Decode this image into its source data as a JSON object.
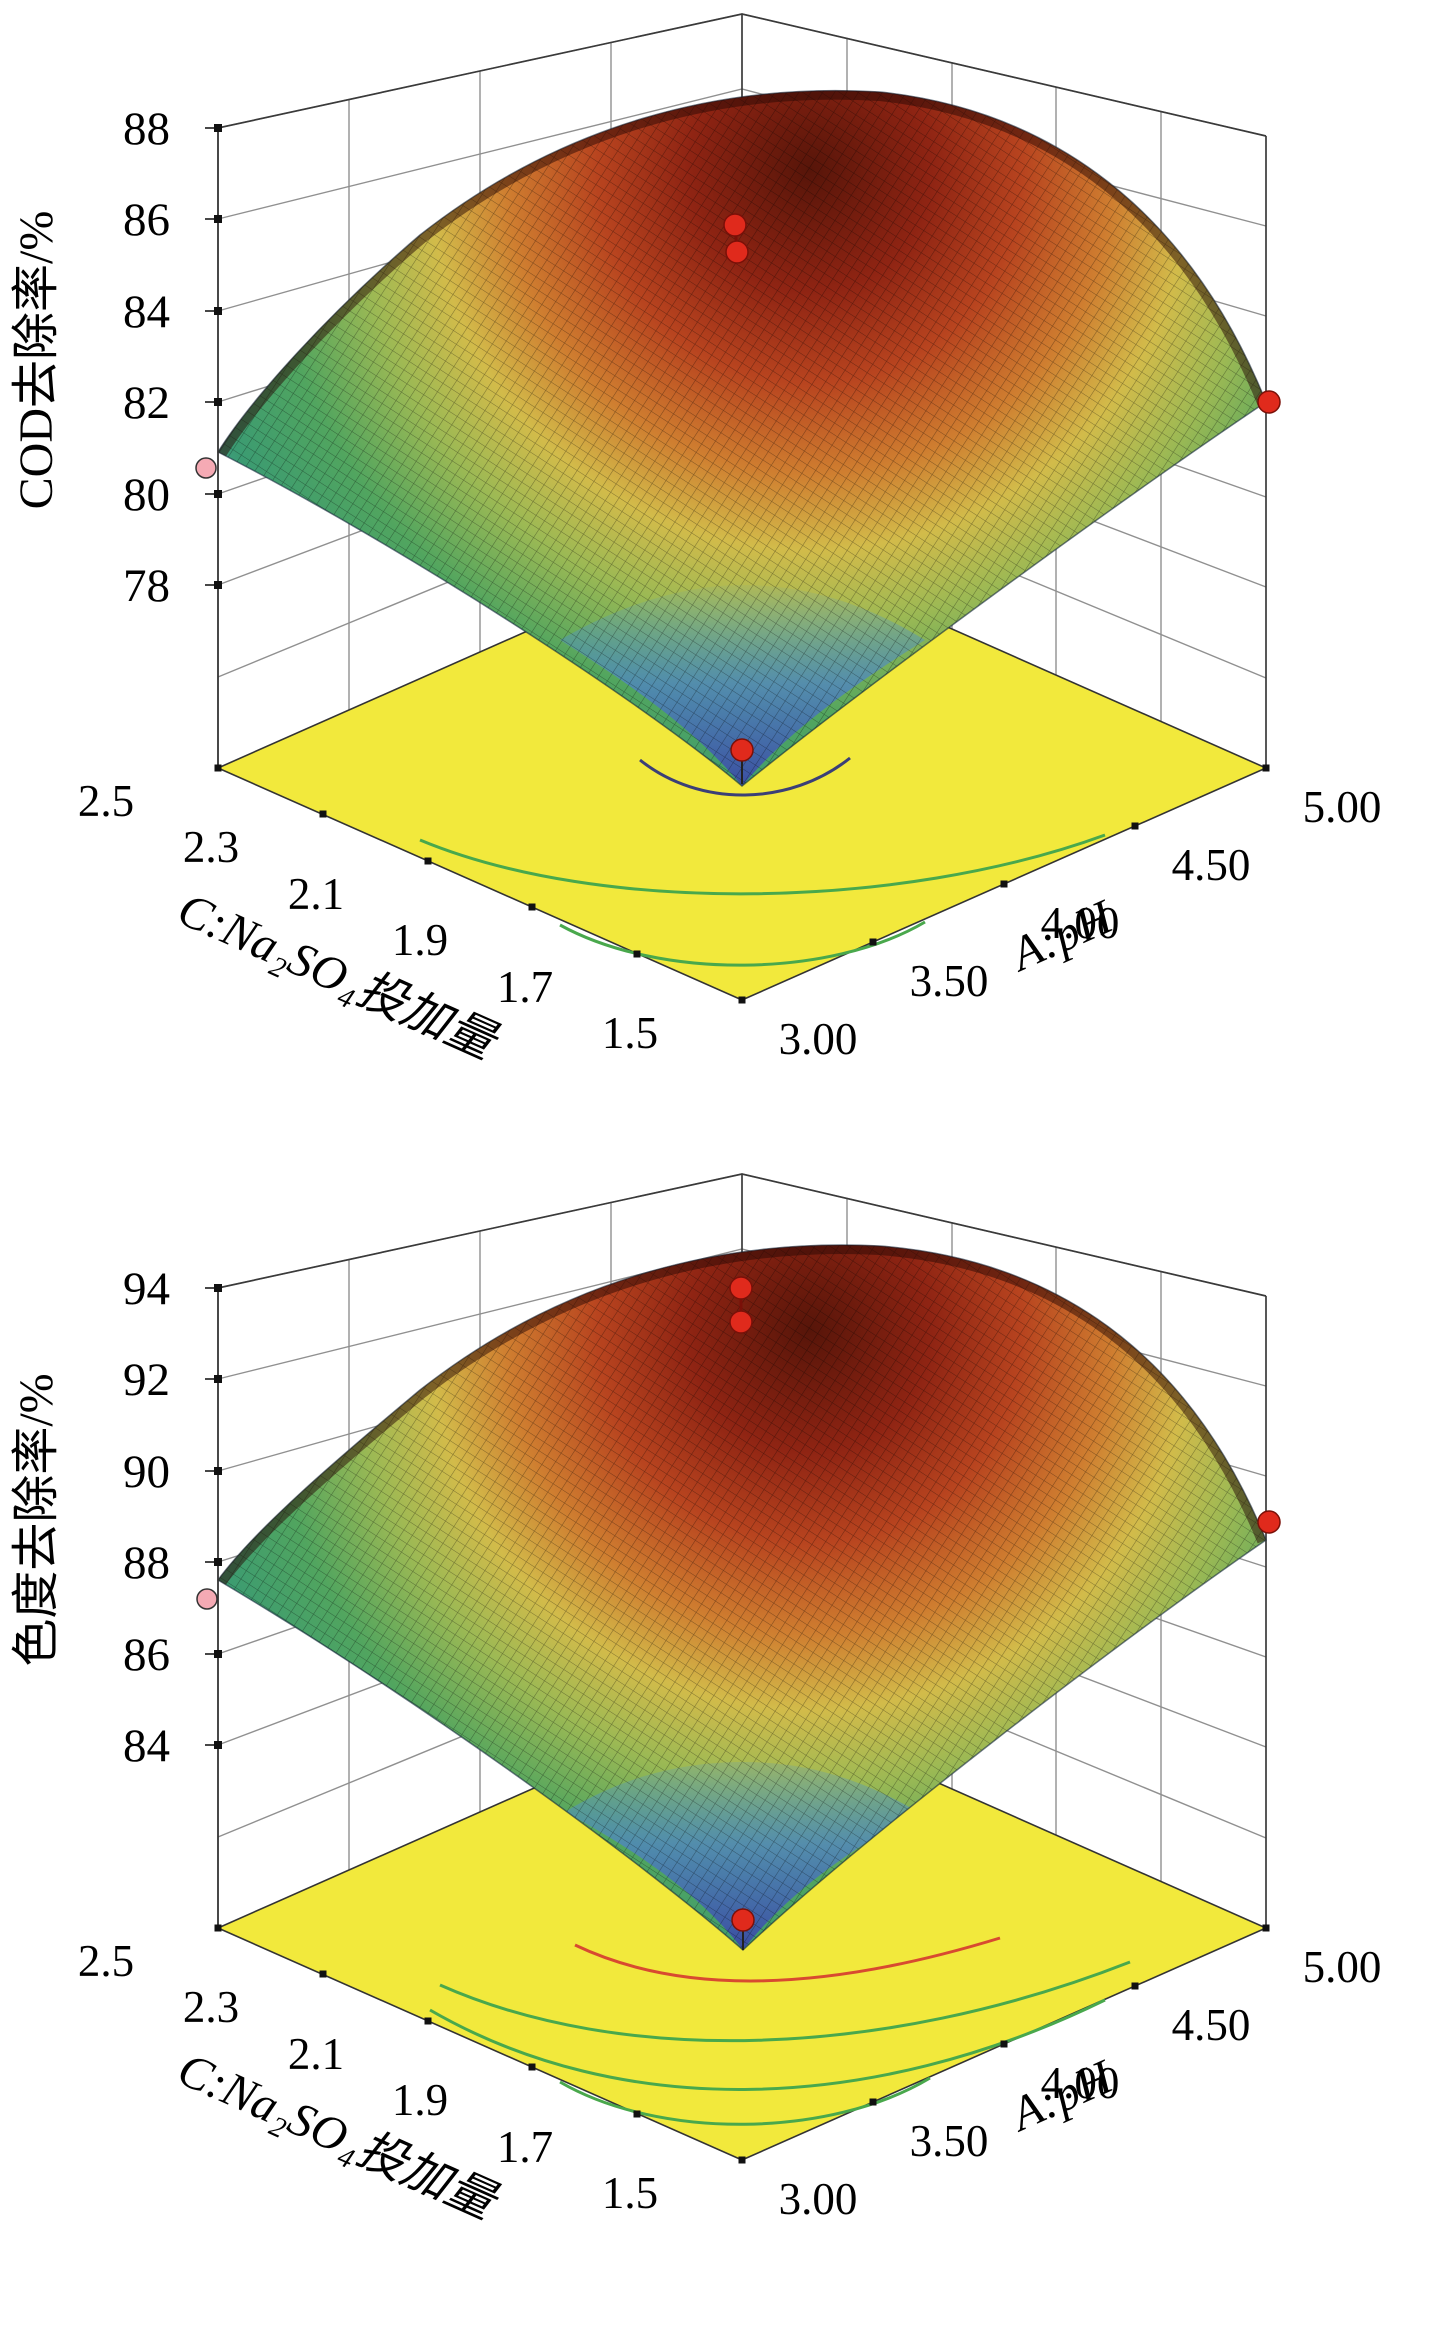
{
  "figure": {
    "background": "#ffffff",
    "description": "Two stacked 3D response-surface plots (response surface methodology) of removal efficiency versus pH and Na2SO4 dosage"
  },
  "charts": [
    {
      "z_axis_title": "COD去除率/%",
      "z_tick_labels": [
        "78",
        "80",
        "82",
        "84",
        "86",
        "88"
      ],
      "dosage_axis_title": "C:Na₂SO₄投加量",
      "dosage_tick_labels": [
        "2.5",
        "2.3",
        "2.1",
        "1.9",
        "1.7",
        "1.5"
      ],
      "ph_axis_title": "A:pH",
      "ph_tick_labels": [
        "3.00",
        "3.50",
        "4.00",
        "4.50",
        "5.00"
      ]
    },
    {
      "z_axis_title": "色度去除率/%",
      "z_tick_labels": [
        "84",
        "86",
        "88",
        "90",
        "92",
        "94"
      ],
      "dosage_axis_title": "C:Na₂SO₄投加量",
      "dosage_tick_labels": [
        "2.5",
        "2.3",
        "2.1",
        "1.9",
        "1.7",
        "1.5"
      ],
      "ph_axis_title": "A:pH",
      "ph_tick_labels": [
        "3.00",
        "3.50",
        "4.00",
        "4.50",
        "5.00"
      ]
    }
  ],
  "chart_data": [
    {
      "type": "surface3d",
      "title": "",
      "zlabel": "COD去除率/%",
      "xlabel": "A:pH",
      "ylabel": "C:Na₂SO₄投加量",
      "x_range": [
        3.0,
        5.0
      ],
      "x_ticks": [
        3.0,
        3.5,
        4.0,
        4.5,
        5.0
      ],
      "y_range": [
        1.5,
        2.5
      ],
      "y_ticks": [
        2.5,
        2.3,
        2.1,
        1.9,
        1.7,
        1.5
      ],
      "z_ticks": [
        78,
        80,
        82,
        84,
        86,
        88
      ],
      "surface": {
        "shape": "dome with sagging front corner",
        "corner_values": {
          "pH3_dose2.5": 80.9,
          "pH3_dose1.5": 78.8,
          "pH5_dose1.5": 82.0
        },
        "peak_value": 88.3,
        "peak_location": {
          "pH": 4.1,
          "dose": 2.1
        },
        "min_value": 78.8,
        "colormap": "height-colored: blue (low) - green - yellow - orange - dark red (high)"
      },
      "design_points": [
        {
          "pH": 4.0,
          "dose": 2.0,
          "value": 85.9,
          "color": "red"
        },
        {
          "pH": 4.0,
          "dose": 2.0,
          "value": 85.3,
          "color": "red"
        },
        {
          "pH": 5.0,
          "dose": 1.5,
          "value": 82.0,
          "color": "red"
        },
        {
          "pH": 3.0,
          "dose": 1.5,
          "value": 79.5,
          "color": "red"
        },
        {
          "pH": 3.0,
          "dose": 2.5,
          "value": 80.5,
          "color": "pink"
        }
      ],
      "floor_color": "#f2e93c",
      "contours_on_floor": [
        "navy arc at dip",
        "green arc mid",
        "green arc near front corner"
      ]
    },
    {
      "type": "surface3d",
      "title": "",
      "zlabel": "色度去除率/%",
      "xlabel": "A:pH",
      "ylabel": "C:Na₂SO₄投加量",
      "x_range": [
        3.0,
        5.0
      ],
      "x_ticks": [
        3.0,
        3.5,
        4.0,
        4.5,
        5.0
      ],
      "y_range": [
        1.5,
        2.5
      ],
      "y_ticks": [
        2.5,
        2.3,
        2.1,
        1.9,
        1.7,
        1.5
      ],
      "z_ticks": [
        84,
        86,
        88,
        90,
        92,
        94
      ],
      "surface": {
        "shape": "dome with sagging front corner",
        "corner_values": {
          "pH3_dose2.5": 87.6,
          "pH3_dose1.5": 84.6,
          "pH5_dose1.5": 88.4
        },
        "peak_value": 94.5,
        "peak_location": {
          "pH": 4.1,
          "dose": 2.1
        },
        "min_value": 84.6,
        "colormap": "height-colored: indigo/blue (low) - green - yellow - orange - dark red (high)"
      },
      "design_points": [
        {
          "pH": 4.0,
          "dose": 2.0,
          "value": 93.4,
          "color": "red"
        },
        {
          "pH": 4.0,
          "dose": 2.0,
          "value": 92.8,
          "color": "red"
        },
        {
          "pH": 5.0,
          "dose": 1.5,
          "value": 88.8,
          "color": "red"
        },
        {
          "pH": 3.0,
          "dose": 1.5,
          "value": 85.2,
          "color": "red"
        },
        {
          "pH": 3.0,
          "dose": 2.5,
          "value": 87.1,
          "color": "pink"
        }
      ],
      "floor_color": "#f2e93c",
      "contours_on_floor": [
        "red arc near dip",
        "three green arcs farther out"
      ]
    }
  ],
  "colors": {
    "floor": "#f2e93c",
    "grid": "#909090",
    "frame": "#3a3a3a",
    "point_red": "#e02a1c",
    "point_pink": "#f5aab4",
    "contour_green": "#49a84c",
    "contour_navy": "#3b3f77",
    "contour_red": "#d84a30"
  }
}
